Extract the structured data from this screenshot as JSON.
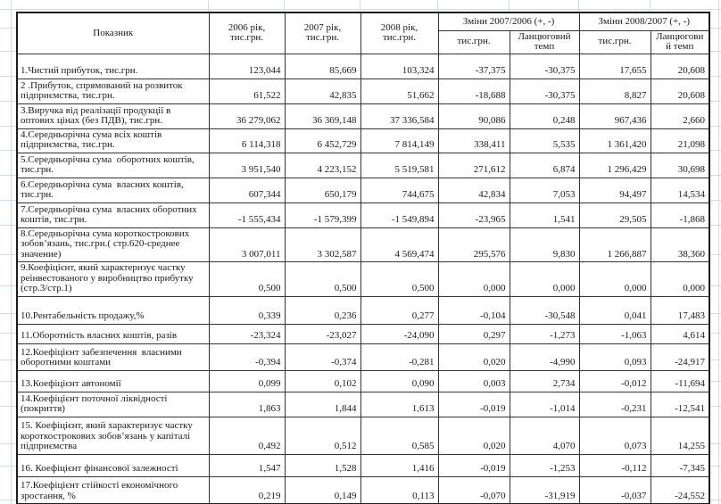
{
  "table": {
    "header": {
      "indicator": "Показник",
      "year2006": "2006 рік,\nтис.грн.",
      "year2007": "2007 рік,\nтис.грн.",
      "year2008": "2008 рік,\nтис.грн.",
      "changes_2007_2006": "Зміни  2007/2006 (+, -)",
      "changes_2008_2007": "Зміни  2008/2007 (+, -)",
      "sub_thousands_1": "тис.грн.",
      "sub_chain_1": "Ланцюговий\nтемп",
      "sub_thousands_2": "тис.грн.",
      "sub_chain_2": "Ланцюгови\nй темп"
    },
    "rows": [
      {
        "label": "1.Чистий прибуток, тис.грн.",
        "y2006": "123,044",
        "y2007": "85,669",
        "y2008": "103,324",
        "d0706": "-37,375",
        "t0706": "-30,375",
        "d0807": "17,655",
        "t0807": "20,608"
      },
      {
        "label": "2 .Прибуток, спрямований на розвиток підприємства, тис.грн.",
        "y2006": "61,522",
        "y2007": "42,835",
        "y2008": "51,662",
        "d0706": "-18,688",
        "t0706": "-30,375",
        "d0807": "8,827",
        "t0807": "20,608"
      },
      {
        "label": "3.Виручка від реалізації продукції в оптових цінах (без ПДВ), тис.грн.",
        "y2006": "36 279,062",
        "y2007": "36 369,148",
        "y2008": "37 336,584",
        "d0706": "90,086",
        "t0706": "0,248",
        "d0807": "967,436",
        "t0807": "2,660"
      },
      {
        "label": "4.Середньорічна сума всіх коштів підприємства, тис.грн.",
        "y2006": "6 114,318",
        "y2007": "6 452,729",
        "y2008": "7 814,149",
        "d0706": "338,411",
        "t0706": "5,535",
        "d0807": "1 361,420",
        "t0807": "21,098"
      },
      {
        "label": "5.Середньорічна сума  оборотних коштів, тис.грн.",
        "y2006": "3 951,540",
        "y2007": "4 223,152",
        "y2008": "5 519,581",
        "d0706": "271,612",
        "t0706": "6,874",
        "d0807": "1 296,429",
        "t0807": "30,698"
      },
      {
        "label": "6.Середньорічна сума  власних коштів, тис.грн.",
        "y2006": "607,344",
        "y2007": "650,179",
        "y2008": "744,675",
        "d0706": "42,834",
        "t0706": "7,053",
        "d0807": "94,497",
        "t0807": "14,534"
      },
      {
        "label": "7.Середньорічна сума  власних оборотних коштів, тис.грн.",
        "y2006": "-1 555,434",
        "y2007": "-1 579,399",
        "y2008": "-1 549,894",
        "d0706": "-23,965",
        "t0706": "1,541",
        "d0807": "29,505",
        "t0807": "-1,868"
      },
      {
        "label": "8.Середньорічна сума короткострокових зобов’язань, тис.грн.( стр.620-среднее значение)",
        "y2006": "3 007,011",
        "y2007": "3 302,587",
        "y2008": "4 569,474",
        "d0706": "295,576",
        "t0706": "9,830",
        "d0807": "1 266,887",
        "t0807": "38,360"
      },
      {
        "label": "9.Коефіцієнт, який характеризує частку реінвестованого у виробництво прибутку (стр.3/стр.1)",
        "y2006": "0,500",
        "y2007": "0,500",
        "y2008": "0,500",
        "d0706": "0,000",
        "t0706": "0,000",
        "d0807": "0,000",
        "t0807": "0,000"
      },
      {
        "label": "10.Рентабельність продажу,%",
        "y2006": "0,339",
        "y2007": "0,236",
        "y2008": "0,277",
        "d0706": "-0,104",
        "t0706": "-30,548",
        "d0807": "0,041",
        "t0807": "17,483"
      },
      {
        "label": "11.Оборотність власних коштів, разів",
        "y2006": "-23,324",
        "y2007": "-23,027",
        "y2008": "-24,090",
        "d0706": "0,297",
        "t0706": "-1,273",
        "d0807": "-1,063",
        "t0807": "4,614"
      },
      {
        "label": "12.Коефіцієнт забезпечення  власними оборотними коштами",
        "y2006": "-0,394",
        "y2007": "-0,374",
        "y2008": "-0,281",
        "d0706": "0,020",
        "t0706": "-4,990",
        "d0807": "0,093",
        "t0807": "-24,917"
      },
      {
        "label": "13.Коефіцієнт автономії",
        "y2006": "0,099",
        "y2007": "0,102",
        "y2008": "0,090",
        "d0706": "0,003",
        "t0706": "2,734",
        "d0807": "-0,012",
        "t0807": "-11,694"
      },
      {
        "label": "14.Коефіцієнт поточної ліквідності (покриття)",
        "y2006": "1,863",
        "y2007": "1,844",
        "y2008": "1,613",
        "d0706": "-0,019",
        "t0706": "-1,014",
        "d0807": "-0,231",
        "t0807": "-12,541"
      },
      {
        "label": "15. Коефіцієнт, який характеризує частку короткострокових зобов’язань у капіталі підприємства",
        "y2006": "0,492",
        "y2007": "0,512",
        "y2008": "0,585",
        "d0706": "0,020",
        "t0706": "4,070",
        "d0807": "0,073",
        "t0807": "14,255"
      },
      {
        "label": "16. Коефіцієнт фінансової залежності",
        "y2006": "1,547",
        "y2007": "1,528",
        "y2008": "1,416",
        "d0706": "-0,019",
        "t0706": "-1,253",
        "d0807": "-0,112",
        "t0807": "-7,345"
      },
      {
        "label": "17.Коефіцієнт стійкості економічного зростання, %",
        "y2006": "0,219",
        "y2007": "0,149",
        "y2008": "0,113",
        "d0706": "-0,070",
        "t0706": "-31,919",
        "d0807": "-0,037",
        "t0807": "-24,552"
      }
    ]
  }
}
